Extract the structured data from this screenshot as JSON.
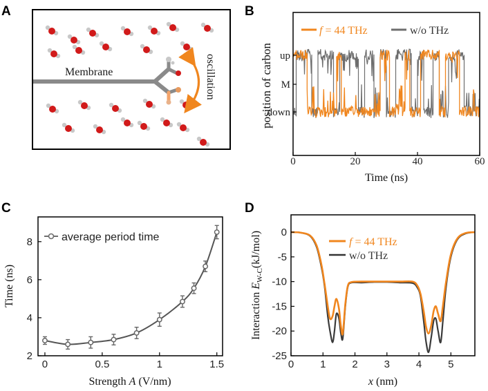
{
  "panels": {
    "a": {
      "letter": "A",
      "membrane_label": "Membrane",
      "oscillation_label": "oscillation"
    },
    "b": {
      "letter": "B"
    },
    "c": {
      "letter": "C"
    },
    "d": {
      "letter": "D"
    }
  },
  "colors": {
    "orange": "#f0861e",
    "gray": "#6e6e6e",
    "water_o": "#d11a1a",
    "water_h": "#c8c8c8",
    "membrane": "#8a8a8a"
  },
  "chart_data": [
    {
      "id": "B",
      "type": "line",
      "title": "",
      "xlabel": "Time (ns)",
      "ylabel": "position of carbon",
      "xlim": [
        0,
        60
      ],
      "x_ticks": [
        0,
        20,
        40,
        60
      ],
      "y_tick_labels": [
        "up",
        "M",
        "down"
      ],
      "legend": {
        "placement": "top",
        "entries": [
          {
            "name_italic": "f",
            "name_rest": " = 44 THz",
            "color": "#f0861e"
          },
          {
            "name": "w/o THz",
            "color": "#6e6e6e"
          }
        ]
      },
      "series": [
        {
          "name": "f = 44 THz",
          "state_segments_ns": [
            [
              0,
              4.5,
              "up"
            ],
            [
              4.5,
              14,
              "down"
            ],
            [
              14,
              15.5,
              "up"
            ],
            [
              15.5,
              28,
              "down"
            ],
            [
              28,
              31,
              "up"
            ],
            [
              31,
              36,
              "down"
            ],
            [
              36,
              37.5,
              "up"
            ],
            [
              37.5,
              41,
              "down"
            ],
            [
              41,
              47,
              "up"
            ],
            [
              47,
              49,
              "down"
            ],
            [
              49,
              53.5,
              "up"
            ],
            [
              53.5,
              60,
              "down"
            ]
          ]
        },
        {
          "name": "w/o THz",
          "state_segments_ns": [
            [
              0,
              1,
              "down"
            ],
            [
              1,
              6,
              "up"
            ],
            [
              6,
              8,
              "down"
            ],
            [
              8,
              13,
              "up"
            ],
            [
              13,
              15,
              "down"
            ],
            [
              15,
              21,
              "up"
            ],
            [
              21,
              23,
              "down"
            ],
            [
              23,
              26,
              "up"
            ],
            [
              26,
              28,
              "down"
            ],
            [
              28,
              30,
              "up"
            ],
            [
              30,
              33,
              "down"
            ],
            [
              33,
              38,
              "up"
            ],
            [
              38,
              40,
              "down"
            ],
            [
              40,
              42,
              "up"
            ],
            [
              42,
              45,
              "down"
            ],
            [
              45,
              47,
              "up"
            ],
            [
              47,
              50,
              "down"
            ],
            [
              50,
              55,
              "up"
            ],
            [
              55,
              60,
              "down"
            ]
          ]
        }
      ]
    },
    {
      "id": "C",
      "type": "line",
      "title": "",
      "xlabel_pre": "Strength ",
      "xlabel_italic": "A",
      "xlabel_post": " (V/nm)",
      "ylabel": "Time (ns)",
      "xlim": [
        -0.06,
        1.55
      ],
      "ylim": [
        2,
        9.3
      ],
      "x_ticks": [
        0,
        0.5,
        1.0,
        1.5
      ],
      "x_tick_labels": [
        "0",
        "0.5",
        "1",
        "1.5"
      ],
      "y_ticks": [
        2,
        4,
        6,
        8
      ],
      "legend": {
        "placement": "top-left",
        "entries": [
          {
            "name": "average period time",
            "color": "#6e6e6e"
          }
        ]
      },
      "series": [
        {
          "name": "average period time",
          "x": [
            0,
            0.2,
            0.4,
            0.6,
            0.8,
            1.0,
            1.2,
            1.3,
            1.4,
            1.5
          ],
          "y": [
            2.8,
            2.6,
            2.7,
            2.85,
            3.2,
            3.9,
            4.85,
            5.55,
            6.7,
            8.5
          ],
          "err": [
            0.2,
            0.25,
            0.3,
            0.28,
            0.3,
            0.35,
            0.3,
            0.28,
            0.28,
            0.35
          ]
        }
      ]
    },
    {
      "id": "D",
      "type": "line",
      "title": "",
      "xlabel_italic": "x",
      "xlabel_post": " (nm)",
      "ylabel_pre": "Interaction ",
      "ylabel_italic": "E",
      "ylabel_sub": "W-C",
      "ylabel_post": "(kJ/mol)",
      "xlim": [
        0,
        5.75
      ],
      "ylim": [
        -25,
        3.5
      ],
      "x_ticks": [
        0,
        1,
        2,
        3,
        4,
        5
      ],
      "y_ticks": [
        0,
        -5,
        -10,
        -15,
        -20,
        -25
      ],
      "legend": {
        "placement": "top-center",
        "entries": [
          {
            "name_italic": "f",
            "name_rest": " = 44 THz",
            "color": "#f0861e"
          },
          {
            "name": "w/o THz",
            "color": "#6e6e6e"
          }
        ]
      },
      "series": [
        {
          "name": "w/o THz",
          "x": [
            0,
            0.3,
            0.6,
            0.8,
            0.95,
            1.05,
            1.15,
            1.22,
            1.3,
            1.36,
            1.42,
            1.5,
            1.56,
            1.62,
            1.7,
            1.78,
            1.9,
            2.2,
            2.6,
            3.0,
            3.4,
            3.8,
            3.95,
            4.05,
            4.15,
            4.22,
            4.3,
            4.38,
            4.46,
            4.53,
            4.6,
            4.68,
            4.75,
            4.85,
            5.0,
            5.2,
            5.45,
            5.75
          ],
          "y": [
            0,
            -0.1,
            -0.8,
            -3,
            -7,
            -11,
            -17,
            -20,
            -22.3,
            -20,
            -16.5,
            -17.5,
            -20.5,
            -21.5,
            -15,
            -11,
            -10.2,
            -10.2,
            -10.1,
            -10.1,
            -10.2,
            -10.3,
            -11.2,
            -13,
            -18,
            -22,
            -24.3,
            -21.5,
            -18,
            -17.5,
            -20,
            -22.3,
            -18,
            -11,
            -5,
            -1.5,
            -0.3,
            0
          ]
        },
        {
          "name": "f = 44 THz",
          "x": [
            0,
            0.3,
            0.6,
            0.8,
            0.95,
            1.05,
            1.15,
            1.22,
            1.3,
            1.36,
            1.42,
            1.5,
            1.56,
            1.62,
            1.7,
            1.78,
            1.9,
            2.2,
            2.6,
            3.0,
            3.4,
            3.8,
            3.95,
            4.05,
            4.15,
            4.22,
            4.3,
            4.38,
            4.46,
            4.53,
            4.6,
            4.68,
            4.75,
            4.85,
            5.0,
            5.2,
            5.45,
            5.75
          ],
          "y": [
            0,
            -0.1,
            -0.7,
            -2.7,
            -6.5,
            -10.5,
            -15,
            -17.5,
            -17,
            -15,
            -13.5,
            -15.5,
            -19,
            -20.5,
            -14.5,
            -10.8,
            -10.1,
            -10,
            -10,
            -10,
            -10,
            -10,
            -10.8,
            -12.5,
            -16,
            -19,
            -20.5,
            -19,
            -16,
            -15,
            -16.5,
            -18,
            -15,
            -10,
            -4.5,
            -1.3,
            -0.2,
            0
          ]
        }
      ]
    }
  ]
}
